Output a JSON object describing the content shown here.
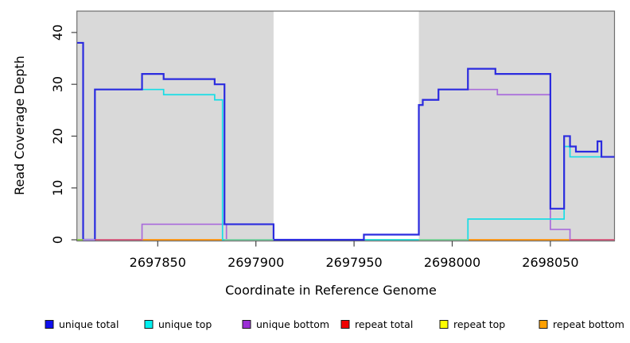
{
  "chart_data": {
    "type": "line",
    "subtype": "step-coverage-plot",
    "title": "",
    "xlabel": "Coordinate in Reference Genome",
    "ylabel": "Read Coverage Depth",
    "x_ticks": [
      2697850,
      2697900,
      2697950,
      2698000,
      2698050
    ],
    "y_ticks": [
      0,
      10,
      20,
      30,
      40
    ],
    "xlim": [
      2697809,
      2698083
    ],
    "ylim": [
      0,
      44
    ],
    "grid": false,
    "background_color": "#ffffff",
    "shaded_region_color": "#d9d9d9",
    "shaded_regions": [
      {
        "x0": 2697809,
        "x1": 2697909
      },
      {
        "x0": 2697983,
        "x1": 2698083
      }
    ],
    "x_end": 2698083,
    "series": [
      {
        "name": "repeat top",
        "color": "#e8e832",
        "width": 1.4,
        "steps": [
          [
            2697809,
            0
          ]
        ]
      },
      {
        "name": "repeat total",
        "color": "#dc5a72",
        "width": 1.4,
        "steps": [
          [
            2697809,
            0
          ]
        ]
      },
      {
        "name": "repeat bottom",
        "color": "#ff9500",
        "width": 1.6,
        "steps": [
          [
            2697809,
            0
          ]
        ]
      },
      {
        "name": "unique bottom",
        "color": "#a96bdb",
        "width": 1.7,
        "steps": [
          [
            2697809,
            38
          ],
          [
            2697812,
            0
          ],
          [
            2697842,
            3
          ],
          [
            2697885,
            0
          ],
          [
            2697955,
            1
          ],
          [
            2697983,
            26
          ],
          [
            2697985,
            27
          ],
          [
            2697993,
            29
          ],
          [
            2698023,
            28
          ],
          [
            2698050,
            2
          ],
          [
            2698060,
            0
          ]
        ]
      },
      {
        "name": "unique top",
        "color": "#17dde6",
        "width": 1.7,
        "steps": [
          [
            2697809,
            0
          ],
          [
            2697818,
            29
          ],
          [
            2697853,
            28
          ],
          [
            2697879,
            27
          ],
          [
            2697883,
            0
          ],
          [
            2698008,
            4
          ],
          [
            2698057,
            18
          ],
          [
            2698060,
            16
          ]
        ]
      },
      {
        "name": "unique total",
        "color": "#2b2bdf",
        "width": 2.2,
        "steps": [
          [
            2697809,
            38
          ],
          [
            2697812,
            0
          ],
          [
            2697818,
            29
          ],
          [
            2697842,
            32
          ],
          [
            2697853,
            31
          ],
          [
            2697879,
            30
          ],
          [
            2697884,
            3
          ],
          [
            2697909,
            0
          ],
          [
            2697955,
            1
          ],
          [
            2697983,
            26
          ],
          [
            2697985,
            27
          ],
          [
            2697993,
            29
          ],
          [
            2698008,
            33
          ],
          [
            2698022,
            32
          ],
          [
            2698050,
            6
          ],
          [
            2698057,
            20
          ],
          [
            2698060,
            18
          ],
          [
            2698063,
            17
          ],
          [
            2698074,
            19
          ],
          [
            2698076,
            16
          ]
        ]
      }
    ],
    "baseline_overlays": [
      {
        "x0": 2697809,
        "x1": 2697812,
        "color": "#9acd32"
      },
      {
        "x0": 2697812,
        "x1": 2697818,
        "color": "#c79fe0"
      },
      {
        "x0": 2697818,
        "x1": 2697842,
        "color": "#dc5a72"
      },
      {
        "x0": 2697884,
        "x1": 2697909,
        "color": "#8fd08f"
      },
      {
        "x0": 2697983,
        "x1": 2698008,
        "color": "#8fd08f"
      },
      {
        "x0": 2698060,
        "x1": 2698083,
        "color": "#dc5a72"
      }
    ],
    "legend": {
      "position": "bottom",
      "items": [
        {
          "label": "unique total",
          "color": "#0f0fef"
        },
        {
          "label": "unique top",
          "color": "#00f0f0"
        },
        {
          "label": "unique bottom",
          "color": "#9b2fd6"
        },
        {
          "label": "repeat total",
          "color": "#f00000"
        },
        {
          "label": "repeat top",
          "color": "#ffff00"
        },
        {
          "label": "repeat bottom",
          "color": "#ffa000"
        }
      ]
    }
  }
}
